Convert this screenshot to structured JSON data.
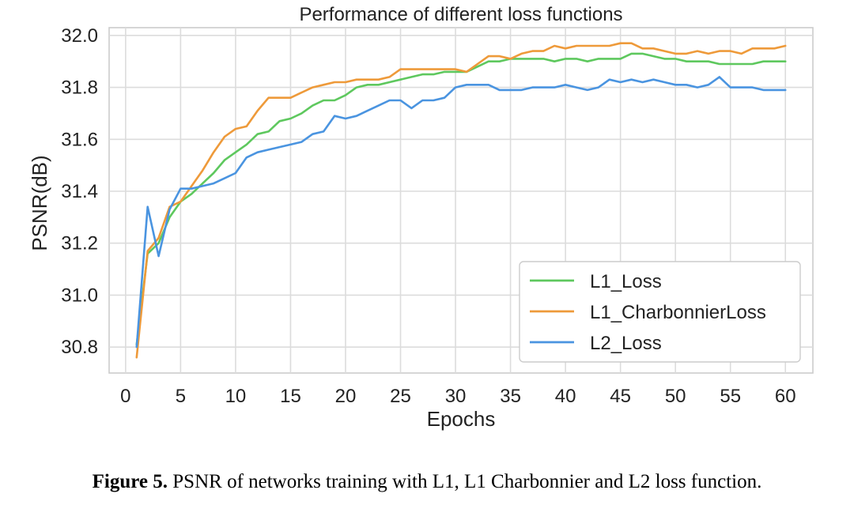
{
  "chart_data": {
    "type": "line",
    "title": "Performance of different loss functions",
    "xlabel": "Epochs",
    "ylabel": "PSNR(dB)",
    "xlim": [
      -1.5,
      62.5
    ],
    "ylim": [
      30.7,
      32.03
    ],
    "xticks": [
      0,
      5,
      10,
      15,
      20,
      25,
      30,
      35,
      40,
      45,
      50,
      55,
      60
    ],
    "yticks": [
      30.8,
      31.0,
      31.2,
      31.4,
      31.6,
      31.8,
      32.0
    ],
    "ytick_labels": [
      "30.8",
      "31.0",
      "31.2",
      "31.4",
      "31.6",
      "31.8",
      "32.0"
    ],
    "grid": true,
    "legend_position": "lower-right",
    "x": [
      1,
      2,
      3,
      4,
      5,
      6,
      7,
      8,
      9,
      10,
      11,
      12,
      13,
      14,
      15,
      16,
      17,
      18,
      19,
      20,
      21,
      22,
      23,
      24,
      25,
      26,
      27,
      28,
      29,
      30,
      31,
      32,
      33,
      34,
      35,
      36,
      37,
      38,
      39,
      40,
      41,
      42,
      43,
      44,
      45,
      46,
      47,
      48,
      49,
      50,
      51,
      52,
      53,
      54,
      55,
      56,
      57,
      58,
      59,
      60
    ],
    "series": [
      {
        "name": "L1_Loss",
        "color": "#5ec85e",
        "values": [
          30.81,
          31.16,
          31.2,
          31.3,
          31.36,
          31.39,
          31.43,
          31.47,
          31.52,
          31.55,
          31.58,
          31.62,
          31.63,
          31.67,
          31.68,
          31.7,
          31.73,
          31.75,
          31.75,
          31.77,
          31.8,
          31.81,
          31.81,
          31.82,
          31.83,
          31.84,
          31.85,
          31.85,
          31.86,
          31.86,
          31.86,
          31.88,
          31.9,
          31.9,
          31.91,
          31.91,
          31.91,
          31.91,
          31.9,
          31.91,
          31.91,
          31.9,
          31.91,
          31.91,
          31.91,
          31.93,
          31.93,
          31.92,
          31.91,
          31.91,
          31.9,
          31.9,
          31.9,
          31.89,
          31.89,
          31.89,
          31.89,
          31.9,
          31.9,
          31.9
        ]
      },
      {
        "name": "L1_CharbonnierLoss",
        "color": "#ee9a3a",
        "values": [
          30.76,
          31.17,
          31.22,
          31.34,
          31.36,
          31.42,
          31.48,
          31.55,
          31.61,
          31.64,
          31.65,
          31.71,
          31.76,
          31.76,
          31.76,
          31.78,
          31.8,
          31.81,
          31.82,
          31.82,
          31.83,
          31.83,
          31.83,
          31.84,
          31.87,
          31.87,
          31.87,
          31.87,
          31.87,
          31.87,
          31.86,
          31.89,
          31.92,
          31.92,
          31.91,
          31.93,
          31.94,
          31.94,
          31.96,
          31.95,
          31.96,
          31.96,
          31.96,
          31.96,
          31.97,
          31.97,
          31.95,
          31.95,
          31.94,
          31.93,
          31.93,
          31.94,
          31.93,
          31.94,
          31.94,
          31.93,
          31.95,
          31.95,
          31.95,
          31.96
        ]
      },
      {
        "name": "L2_Loss",
        "color": "#4a94e0",
        "values": [
          30.8,
          31.34,
          31.15,
          31.33,
          31.41,
          31.41,
          31.42,
          31.43,
          31.45,
          31.47,
          31.53,
          31.55,
          31.56,
          31.57,
          31.58,
          31.59,
          31.62,
          31.63,
          31.69,
          31.68,
          31.69,
          31.71,
          31.73,
          31.75,
          31.75,
          31.72,
          31.75,
          31.75,
          31.76,
          31.8,
          31.81,
          31.81,
          31.81,
          31.79,
          31.79,
          31.79,
          31.8,
          31.8,
          31.8,
          31.81,
          31.8,
          31.79,
          31.8,
          31.83,
          31.82,
          31.83,
          31.82,
          31.83,
          31.82,
          31.81,
          31.81,
          31.8,
          31.81,
          31.84,
          31.8,
          31.8,
          31.8,
          31.79,
          31.79,
          31.79
        ]
      }
    ]
  },
  "caption": {
    "label": "Figure 5.",
    "text": " PSNR of networks training with L1, L1 Charbonnier and L2 loss function."
  }
}
